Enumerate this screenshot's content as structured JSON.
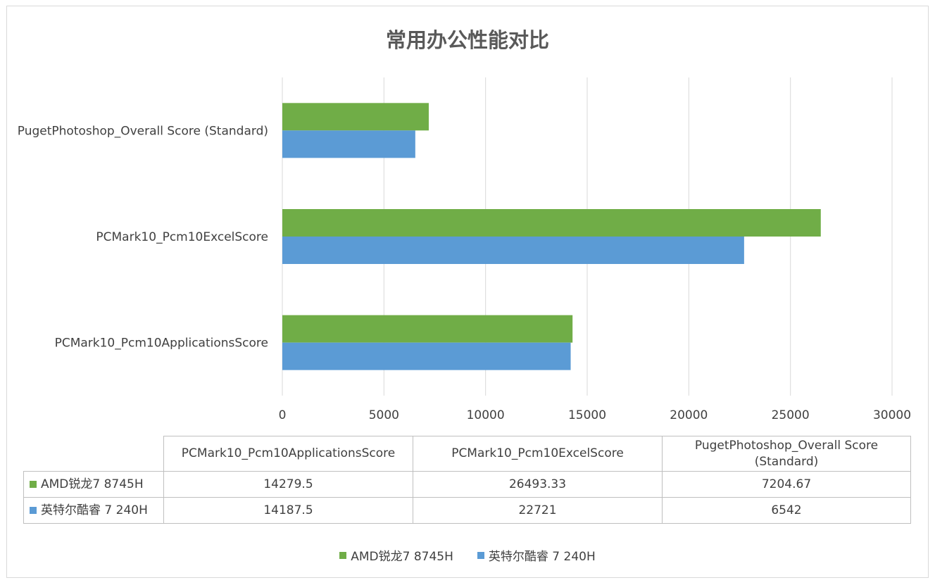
{
  "chart_data": {
    "type": "bar",
    "orientation": "horizontal",
    "title": "常用办公性能对比",
    "categories": [
      "PCMark10_Pcm10ApplicationsScore",
      "PCMark10_Pcm10ExcelScore",
      "PugetPhotoshop_Overall Score (Standard)"
    ],
    "category_header_lines": [
      [
        "PCMark10_Pcm10ApplicationsScore"
      ],
      [
        "PCMark10_Pcm10ExcelScore"
      ],
      [
        "PugetPhotoshop_Overall Score",
        "(Standard)"
      ]
    ],
    "series": [
      {
        "name": "AMD锐龙7 8745H",
        "color": "#70ad47",
        "values": [
          14279.5,
          26493.33,
          7204.67
        ],
        "display": [
          "14279.5",
          "26493.33",
          "7204.67"
        ]
      },
      {
        "name": "英特尔酷睿 7 240H",
        "color": "#5b9bd5",
        "values": [
          14187.5,
          22721,
          6542
        ],
        "display": [
          "14187.5",
          "22721",
          "6542"
        ]
      }
    ],
    "xlim": [
      0,
      30000
    ],
    "ticks": [
      0,
      5000,
      10000,
      15000,
      20000,
      25000,
      30000
    ],
    "grid": true,
    "data_table": true,
    "legend_position": "bottom"
  }
}
